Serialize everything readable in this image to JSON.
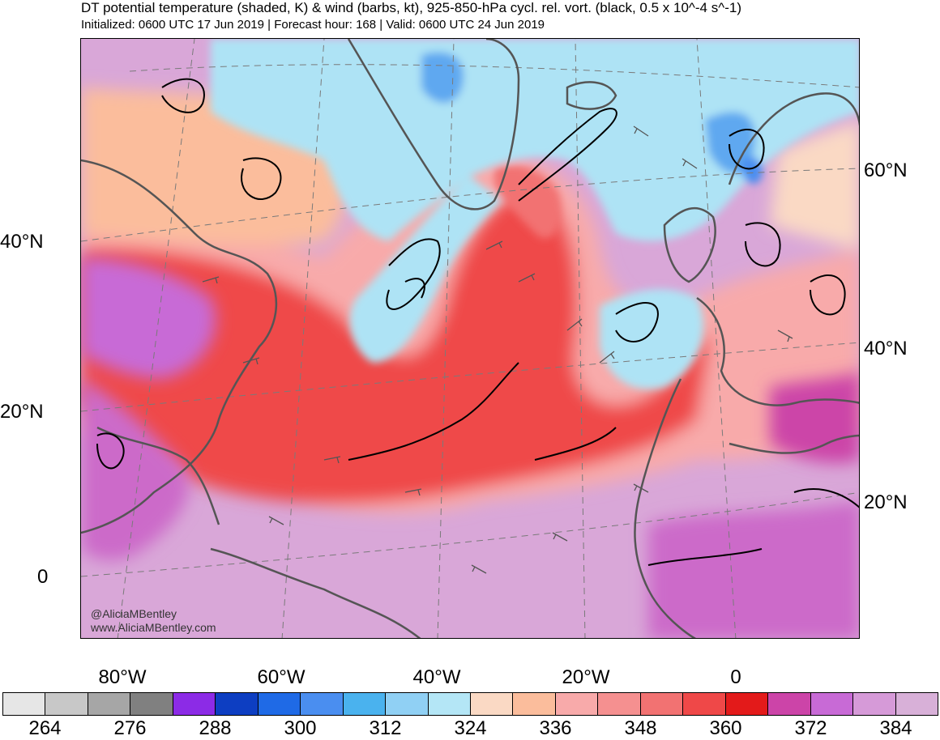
{
  "header": {
    "title": "DT potential temperature (shaded, K) & wind (barbs, kt), 925-850-hPa cycl. rel. vort. (black, 0.5 x 10^-4 s^-1)",
    "subtitle": "Initialized: 0600 UTC 17 Jun 2019 | Forecast hour: 168 | Valid: 0600 UTC 24 Jun 2019"
  },
  "map": {
    "left_lat_labels": [
      "40°N",
      "20°N",
      "0"
    ],
    "right_lat_labels": [
      "60°N",
      "40°N",
      "20°N"
    ],
    "lon_labels": [
      "80°W",
      "60°W",
      "40°W",
      "20°W",
      "0"
    ],
    "credit_handle": "@AliciaMBentley",
    "credit_url": "www.AliciaMBentley.com",
    "colors": {
      "ocean_cold": "#aee3f5",
      "cold_core": "#5ea8f0",
      "warm_tongue": "#f5a3a3",
      "hot_core": "#ef4848",
      "tropical": "#cc6bc9",
      "tropical_light": "#d9a7d8",
      "coast": "#555555",
      "vort": "#000000"
    }
  },
  "colorbar": {
    "labels": [
      "264",
      "276",
      "288",
      "300",
      "312",
      "324",
      "336",
      "348",
      "360",
      "372",
      "384"
    ],
    "colors": [
      "#e6e6e6",
      "#c8c8c8",
      "#a6a6a6",
      "#808080",
      "#8c2be6",
      "#0d3ec2",
      "#1f6ae6",
      "#4a8ef0",
      "#4ab2ee",
      "#90d0f4",
      "#b4e6f6",
      "#fad9c4",
      "#fbbd9c",
      "#f8aaaa",
      "#f59090",
      "#f27272",
      "#ef4848",
      "#e31a1a",
      "#cc44a8",
      "#c86ad6",
      "#d69ad8",
      "#d8b0d8"
    ]
  }
}
